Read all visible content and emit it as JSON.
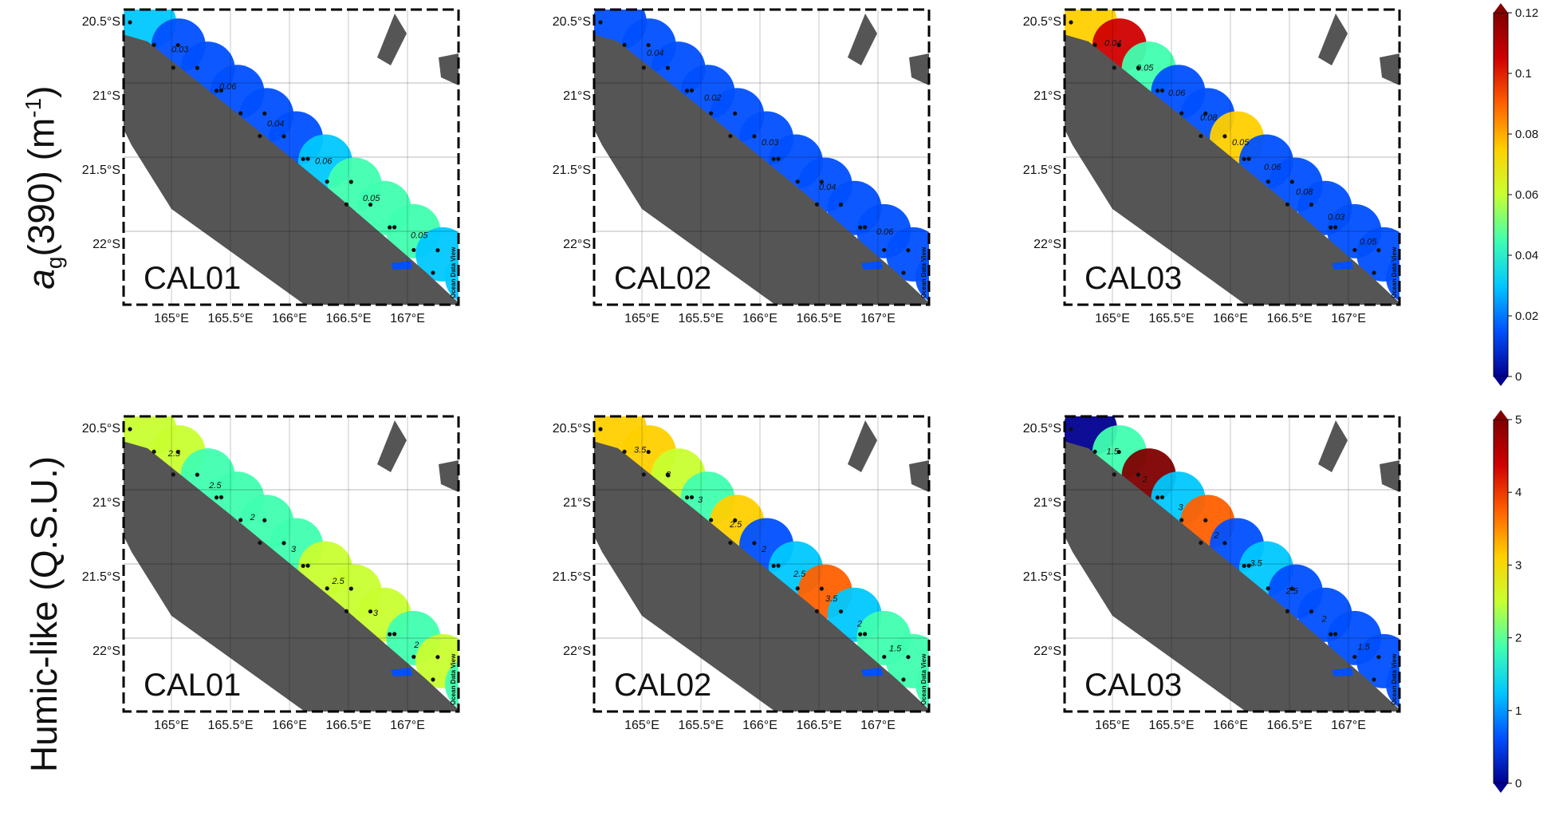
{
  "row_labels": {
    "top": {
      "main": "a",
      "sub": "g",
      "rest": "(390) (m",
      "sup": "-1",
      "close": ")"
    },
    "bottom": "Humic-like (Q.S.U.)"
  },
  "axis": {
    "lat_ticks": [
      "20.5°S",
      "21°S",
      "21.5°S",
      "22°S"
    ],
    "lon_ticks": [
      "165°E",
      "165.5°E",
      "166°E",
      "166.5°E",
      "167°E"
    ]
  },
  "credit": "Ocean Data View",
  "panels": [
    {
      "cruise": "CAL01",
      "row": 0,
      "col": 0
    },
    {
      "cruise": "CAL02",
      "row": 0,
      "col": 1
    },
    {
      "cruise": "CAL03",
      "row": 0,
      "col": 2
    },
    {
      "cruise": "CAL01",
      "row": 1,
      "col": 0
    },
    {
      "cruise": "CAL02",
      "row": 1,
      "col": 1
    },
    {
      "cruise": "CAL03",
      "row": 1,
      "col": 2
    }
  ],
  "colorbars": {
    "top": {
      "ticks": [
        "0.12",
        "0.1",
        "0.08",
        "0.06",
        "0.04",
        "0.02",
        "0"
      ]
    },
    "bottom": {
      "ticks": [
        "5",
        "4",
        "3",
        "2",
        "1",
        "0"
      ]
    }
  },
  "contour_labels": {
    "p0": [
      "0.03",
      "0.06",
      "0.04",
      "0.06",
      "0.05",
      "0.05"
    ],
    "p1": [
      "0.04",
      "0.02",
      "0.03",
      "0.04",
      "0.06"
    ],
    "p2": [
      "0.04",
      "0.05",
      "0.06",
      "0.08",
      "0.05",
      "0.06",
      "0.08",
      "0.03",
      "0.05"
    ],
    "p3": [
      "2.5",
      "2.5",
      "2",
      "3",
      "2.5",
      "3",
      "2"
    ],
    "p4": [
      "3.5",
      "3",
      "3",
      "2.5",
      "2",
      "2.5",
      "3.5",
      "2",
      "1.5"
    ],
    "p5": [
      "1.5",
      "2",
      "3",
      "2",
      "3.5",
      "2.5",
      "2",
      "1.5"
    ]
  },
  "colors": {
    "land": "#555555",
    "scale": [
      "#00008f",
      "#0050ff",
      "#00c8ff",
      "#40ffb0",
      "#c8ff30",
      "#ffd000",
      "#ff6000",
      "#d00000",
      "#800000"
    ]
  }
}
